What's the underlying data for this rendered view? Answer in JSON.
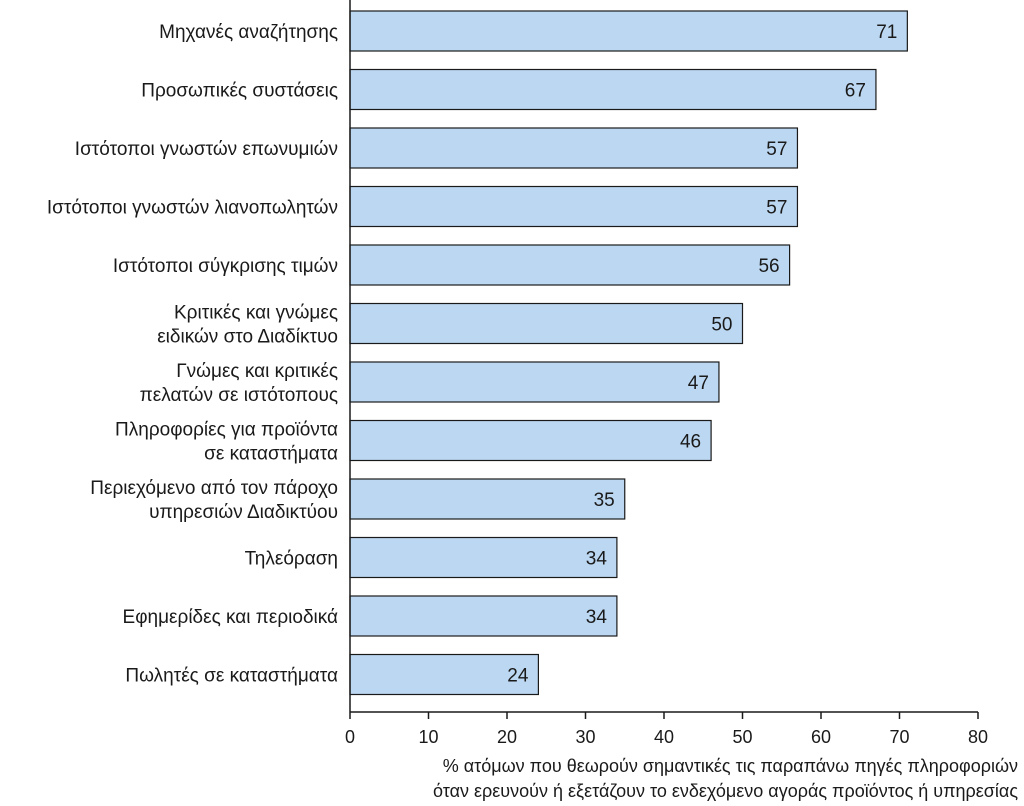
{
  "chart_data": {
    "type": "bar",
    "orientation": "horizontal",
    "categories": [
      [
        "Μηχανές αναζήτησης"
      ],
      [
        "Προσωπικές συστάσεις"
      ],
      [
        "Ιστότοποι γνωστών επωνυμιών"
      ],
      [
        "Ιστότοποι γνωστών λιανοπωλητών"
      ],
      [
        "Ιστότοποι σύγκρισης τιμών"
      ],
      [
        "Κριτικές και γνώμες",
        "ειδικών στο Διαδίκτυο"
      ],
      [
        "Γνώμες και κριτικές",
        "πελατών σε ιστότοπους"
      ],
      [
        "Πληροφορίες για προϊόντα",
        "σε καταστήματα"
      ],
      [
        "Περιεχόμενο από τον πάροχο",
        "υπηρεσιών Διαδικτύου"
      ],
      [
        "Τηλεόραση"
      ],
      [
        "Εφημερίδες και περιοδικά"
      ],
      [
        "Πωλητές σε καταστήματα"
      ]
    ],
    "values": [
      71,
      67,
      57,
      57,
      56,
      50,
      47,
      46,
      35,
      34,
      34,
      24
    ],
    "xlim": [
      0,
      80
    ],
    "xticks": [
      0,
      10,
      20,
      30,
      40,
      50,
      60,
      70,
      80
    ],
    "xlabel": [
      "% ατόμων που θεωρούν σημαντικές τις παραπάνω πηγές πληροφοριών",
      "όταν ερευνούν ή εξετάζουν το ενδεχόμενο αγοράς προϊόντος ή υπηρεσίας"
    ],
    "ylabel": "",
    "title": "",
    "grid": false,
    "colors": {
      "bar_fill": "#bcd7f1",
      "bar_stroke": "#1a1a1a",
      "axis": "#1a1a1a",
      "text": "#1a1a1a"
    }
  }
}
